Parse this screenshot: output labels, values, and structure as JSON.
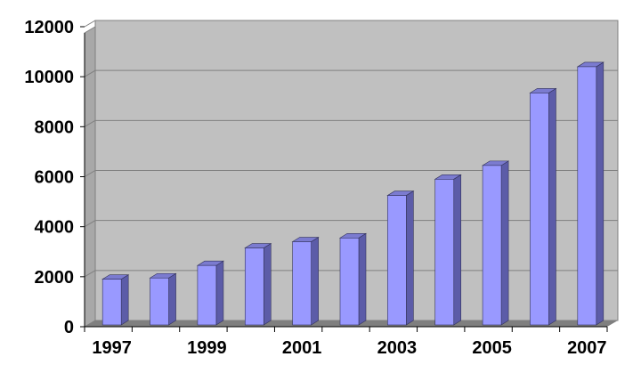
{
  "chart_data": {
    "type": "bar",
    "style": "3d-column",
    "categories": [
      "1997",
      "1998",
      "1999",
      "2000",
      "2001",
      "2002",
      "2003",
      "2004",
      "2005",
      "2006",
      "2007"
    ],
    "x_tick_labels_shown": [
      "1997",
      "1999",
      "2001",
      "2003",
      "2005",
      "2007"
    ],
    "values": [
      1900,
      1950,
      2450,
      3150,
      3400,
      3550,
      5250,
      5900,
      6450,
      9350,
      10400
    ],
    "ylim": [
      0,
      12000
    ],
    "yticks": [
      0,
      2000,
      4000,
      6000,
      8000,
      10000,
      12000
    ],
    "y_tick_labels": [
      "0",
      "2000",
      "4000",
      "6000",
      "8000",
      "10000",
      "12000"
    ],
    "grid": true,
    "legend": "none",
    "title": "",
    "xlabel": "",
    "ylabel": "",
    "colors": {
      "bar_front": "#9999ff",
      "bar_side": "#5c5ca8",
      "bar_top": "#7b7bd0",
      "back_wall": "#c0c0c0",
      "side_wall": "#a8a8a8",
      "floor": "#7f7f7f",
      "gridline": "#808080"
    }
  }
}
